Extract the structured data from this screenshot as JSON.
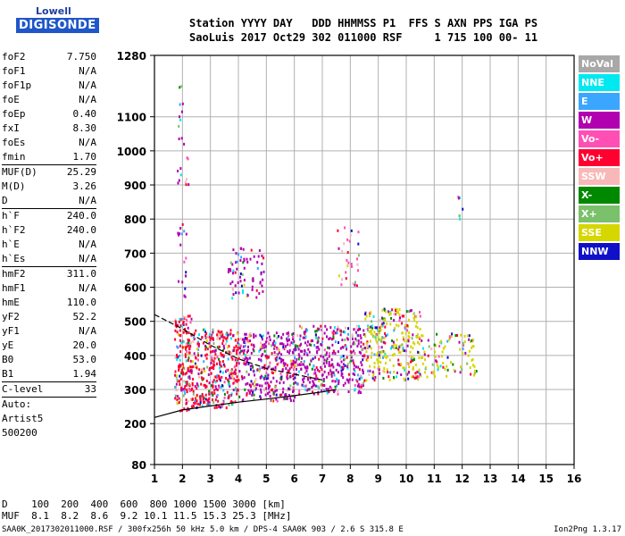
{
  "logo": {
    "top": "Lowell",
    "bottom": "DIGISONDE"
  },
  "header": {
    "line1": "Station YYYY DAY   DDD HHMMSS P1  FFS S AXN PPS IGA PS",
    "line2": "SaoLuis 2017 Oct29 302 011000 RSF     1 715 100 00- 11"
  },
  "params": [
    {
      "name": "foF2",
      "value": "7.750"
    },
    {
      "name": "foF1",
      "value": "N/A"
    },
    {
      "name": "foF1p",
      "value": "N/A"
    },
    {
      "name": "foE",
      "value": "N/A"
    },
    {
      "name": "foEp",
      "value": "0.40"
    },
    {
      "name": "fxI",
      "value": "8.30"
    },
    {
      "name": "foEs",
      "value": "N/A"
    },
    {
      "name": "fmin",
      "value": "1.70"
    },
    {
      "sep": true,
      "name": "MUF(D)",
      "value": "25.29"
    },
    {
      "name": "M(D)",
      "value": "3.26"
    },
    {
      "name": "D",
      "value": "N/A"
    },
    {
      "sep": true,
      "name": "h`F",
      "value": "240.0"
    },
    {
      "name": "h`F2",
      "value": "240.0"
    },
    {
      "name": "h`E",
      "value": "N/A"
    },
    {
      "name": "h`Es",
      "value": "N/A"
    },
    {
      "sep": true,
      "name": "hmF2",
      "value": "311.0"
    },
    {
      "name": "hmF1",
      "value": "N/A"
    },
    {
      "name": "hmE",
      "value": "110.0"
    },
    {
      "name": "yF2",
      "value": "52.2"
    },
    {
      "name": "yF1",
      "value": "N/A"
    },
    {
      "name": "yE",
      "value": "20.0"
    },
    {
      "name": "B0",
      "value": "53.0"
    },
    {
      "name": "B1",
      "value": "1.94"
    },
    {
      "sep": true,
      "name": "C-level",
      "value": "33"
    },
    {
      "sep": true,
      "name": "Auto:",
      "value": ""
    },
    {
      "name": "Artist5",
      "value": ""
    },
    {
      "name": "500200",
      "value": ""
    }
  ],
  "legend": [
    {
      "label": "NoVal",
      "color": "#a8a8a8"
    },
    {
      "label": "NNE",
      "color": "#00e8f0"
    },
    {
      "label": "E",
      "color": "#3aa6ff"
    },
    {
      "label": "W",
      "color": "#b000b0"
    },
    {
      "label": "Vo-",
      "color": "#ff4fb4"
    },
    {
      "label": "Vo+",
      "color": "#ff0030"
    },
    {
      "label": "SSW",
      "color": "#f8b8b8"
    },
    {
      "label": "X-",
      "color": "#008800"
    },
    {
      "label": "X+",
      "color": "#7bc06a"
    },
    {
      "label": "SSE",
      "color": "#d6d600"
    },
    {
      "label": "NNW",
      "color": "#1010c8"
    }
  ],
  "bottom_table": {
    "row1": "D    100  200  400  600  800 1000 1500 3000 [km]",
    "row2": "MUF  8.1  8.2  8.6  9.2 10.1 11.5 15.3 25.3 [MHz]"
  },
  "footer": {
    "text": "SAA0K_2017302011000.RSF / 300fx256h 50 kHz 5.0 km / DPS-4 SAA0K 903 / 2.6 S 315.8 E",
    "version": "Ion2Png 1.3.17"
  },
  "chart_data": {
    "type": "scatter",
    "x_ticks": [
      1,
      2,
      3,
      4,
      5,
      6,
      7,
      8,
      9,
      10,
      11,
      12,
      13,
      14,
      15,
      16
    ],
    "y_ticks": [
      80,
      200,
      300,
      400,
      500,
      600,
      700,
      800,
      900,
      1000,
      1100,
      1280
    ],
    "xlim": [
      1,
      16
    ],
    "ylim": [
      80,
      1280
    ],
    "grid": true,
    "echo_clusters": [
      {
        "x": [
          1.7,
          2.3
        ],
        "y": [
          240,
          520
        ],
        "density": 0.8,
        "main": "Vo+"
      },
      {
        "x": [
          2.3,
          4.0
        ],
        "y": [
          250,
          480
        ],
        "density": 0.7,
        "main": "Vo+"
      },
      {
        "x": [
          4.0,
          6.0
        ],
        "y": [
          270,
          470
        ],
        "density": 0.65,
        "main": "W"
      },
      {
        "x": [
          6.0,
          8.5
        ],
        "y": [
          290,
          490
        ],
        "density": 0.6,
        "main": "W"
      },
      {
        "x": [
          8.5,
          10.5
        ],
        "y": [
          330,
          540
        ],
        "density": 0.55,
        "main": "SSE"
      },
      {
        "x": [
          10.5,
          12.5
        ],
        "y": [
          340,
          470
        ],
        "density": 0.3,
        "main": "SSE"
      },
      {
        "x": [
          3.6,
          4.9
        ],
        "y": [
          570,
          720
        ],
        "density": 0.3,
        "main": "W"
      },
      {
        "x": [
          7.5,
          8.3
        ],
        "y": [
          600,
          790
        ],
        "density": 0.15,
        "main": "Vo-"
      },
      {
        "x": [
          1.8,
          2.2
        ],
        "y": [
          560,
          1200
        ],
        "density": 0.12,
        "main": "W"
      },
      {
        "x": [
          11.8,
          12.0
        ],
        "y": [
          800,
          940
        ],
        "density": 0.2,
        "main": "NNE"
      }
    ],
    "trace_virtual_height": {
      "x": [
        1.0,
        2.0,
        3.0,
        4.0,
        5.0,
        6.0,
        7.0,
        7.5
      ],
      "y": [
        218,
        240,
        252,
        263,
        272,
        282,
        293,
        300
      ]
    },
    "trace_profile": {
      "x": [
        1.0,
        2.0,
        3.0,
        4.0,
        5.0,
        6.0,
        7.0
      ],
      "y": [
        520,
        478,
        430,
        390,
        362,
        345,
        328
      ]
    }
  }
}
